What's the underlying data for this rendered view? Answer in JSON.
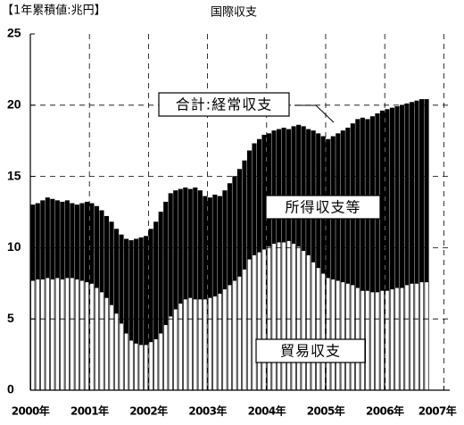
{
  "chart_data": {
    "type": "stacked_bar",
    "title": "国際収支",
    "y_label": "【1年累積値:兆円】",
    "annotation": "合計:経常収支",
    "xlim": [
      2000,
      2007.1
    ],
    "xticks": [
      {
        "value": 2000,
        "label": "2000年"
      },
      {
        "value": 2001,
        "label": "2001年"
      },
      {
        "value": 2002,
        "label": "2002年"
      },
      {
        "value": 2003,
        "label": "2003年"
      },
      {
        "value": 2004,
        "label": "2004年"
      },
      {
        "value": 2005,
        "label": "2005年"
      },
      {
        "value": 2006,
        "label": "2006年"
      },
      {
        "value": 2007,
        "label": "2007年"
      }
    ],
    "ylim": [
      0,
      25
    ],
    "yticks": [
      0,
      5,
      10,
      15,
      20,
      25
    ],
    "grid": true,
    "series": [
      {
        "name": "貿易収支",
        "color": "#ffffff",
        "values": [
          7.7,
          7.8,
          7.8,
          7.9,
          7.8,
          7.9,
          7.8,
          7.9,
          7.9,
          7.8,
          7.7,
          7.6,
          7.5,
          7.2,
          6.9,
          6.5,
          6.0,
          5.4,
          4.7,
          4.0,
          3.5,
          3.3,
          3.2,
          3.2,
          3.4,
          3.6,
          4.0,
          4.6,
          5.2,
          5.7,
          6.1,
          6.4,
          6.5,
          6.4,
          6.4,
          6.4,
          6.5,
          6.6,
          6.8,
          7.1,
          7.4,
          7.7,
          8.0,
          8.5,
          9.2,
          9.5,
          9.7,
          9.9,
          10.1,
          10.3,
          10.4,
          10.4,
          10.5,
          10.3,
          10.1,
          9.8,
          9.5,
          9.0,
          8.6,
          8.2,
          7.9,
          7.8,
          7.7,
          7.6,
          7.5,
          7.4,
          7.2,
          7.0,
          7.0,
          6.9,
          6.9,
          7.0,
          7.0,
          7.1,
          7.2,
          7.2,
          7.4,
          7.5,
          7.5,
          7.6,
          7.6
        ]
      },
      {
        "name": "所得収支等",
        "color": "#000000",
        "values": [
          5.3,
          5.3,
          5.5,
          5.6,
          5.6,
          5.4,
          5.4,
          5.4,
          5.2,
          5.2,
          5.4,
          5.6,
          5.6,
          5.7,
          5.7,
          5.7,
          5.8,
          5.9,
          6.2,
          6.6,
          7.0,
          7.3,
          7.5,
          7.6,
          7.9,
          8.2,
          8.5,
          8.6,
          8.6,
          8.3,
          8.0,
          7.8,
          7.6,
          7.8,
          7.6,
          7.2,
          7.0,
          7.1,
          6.8,
          6.9,
          7.1,
          7.3,
          7.5,
          7.6,
          7.6,
          7.8,
          7.9,
          8.0,
          7.9,
          7.9,
          7.9,
          8.0,
          7.8,
          8.2,
          8.5,
          8.7,
          8.8,
          9.2,
          9.4,
          9.6,
          9.7,
          10.0,
          10.3,
          10.6,
          10.9,
          11.3,
          11.8,
          12.1,
          12.0,
          12.3,
          12.5,
          12.6,
          12.7,
          12.7,
          12.7,
          12.8,
          12.7,
          12.7,
          12.8,
          12.8,
          12.8
        ]
      }
    ]
  }
}
